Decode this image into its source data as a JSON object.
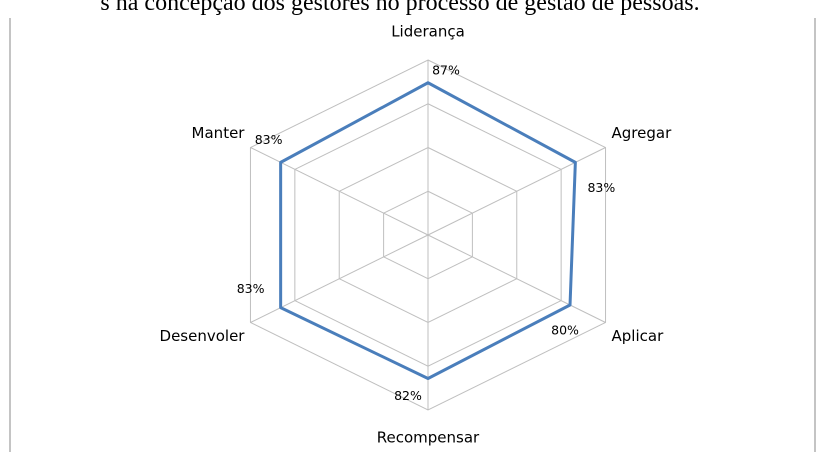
{
  "chart_data": {
    "type": "radar",
    "title": "s na concepção dos gestores no processo de gestão de pessoas.",
    "categories": [
      "Liderança",
      "Agregar",
      "Aplicar",
      "Recompensar",
      "Desenvoler",
      "Manter"
    ],
    "values": [
      87,
      83,
      80,
      82,
      83,
      83
    ],
    "value_labels": [
      "87%",
      "83%",
      "80%",
      "82%",
      "83%",
      "83%"
    ],
    "color": "#4a7ebb",
    "ylim": [
      0,
      100
    ],
    "yticks": [
      25,
      50,
      75,
      100
    ],
    "grid": true
  }
}
